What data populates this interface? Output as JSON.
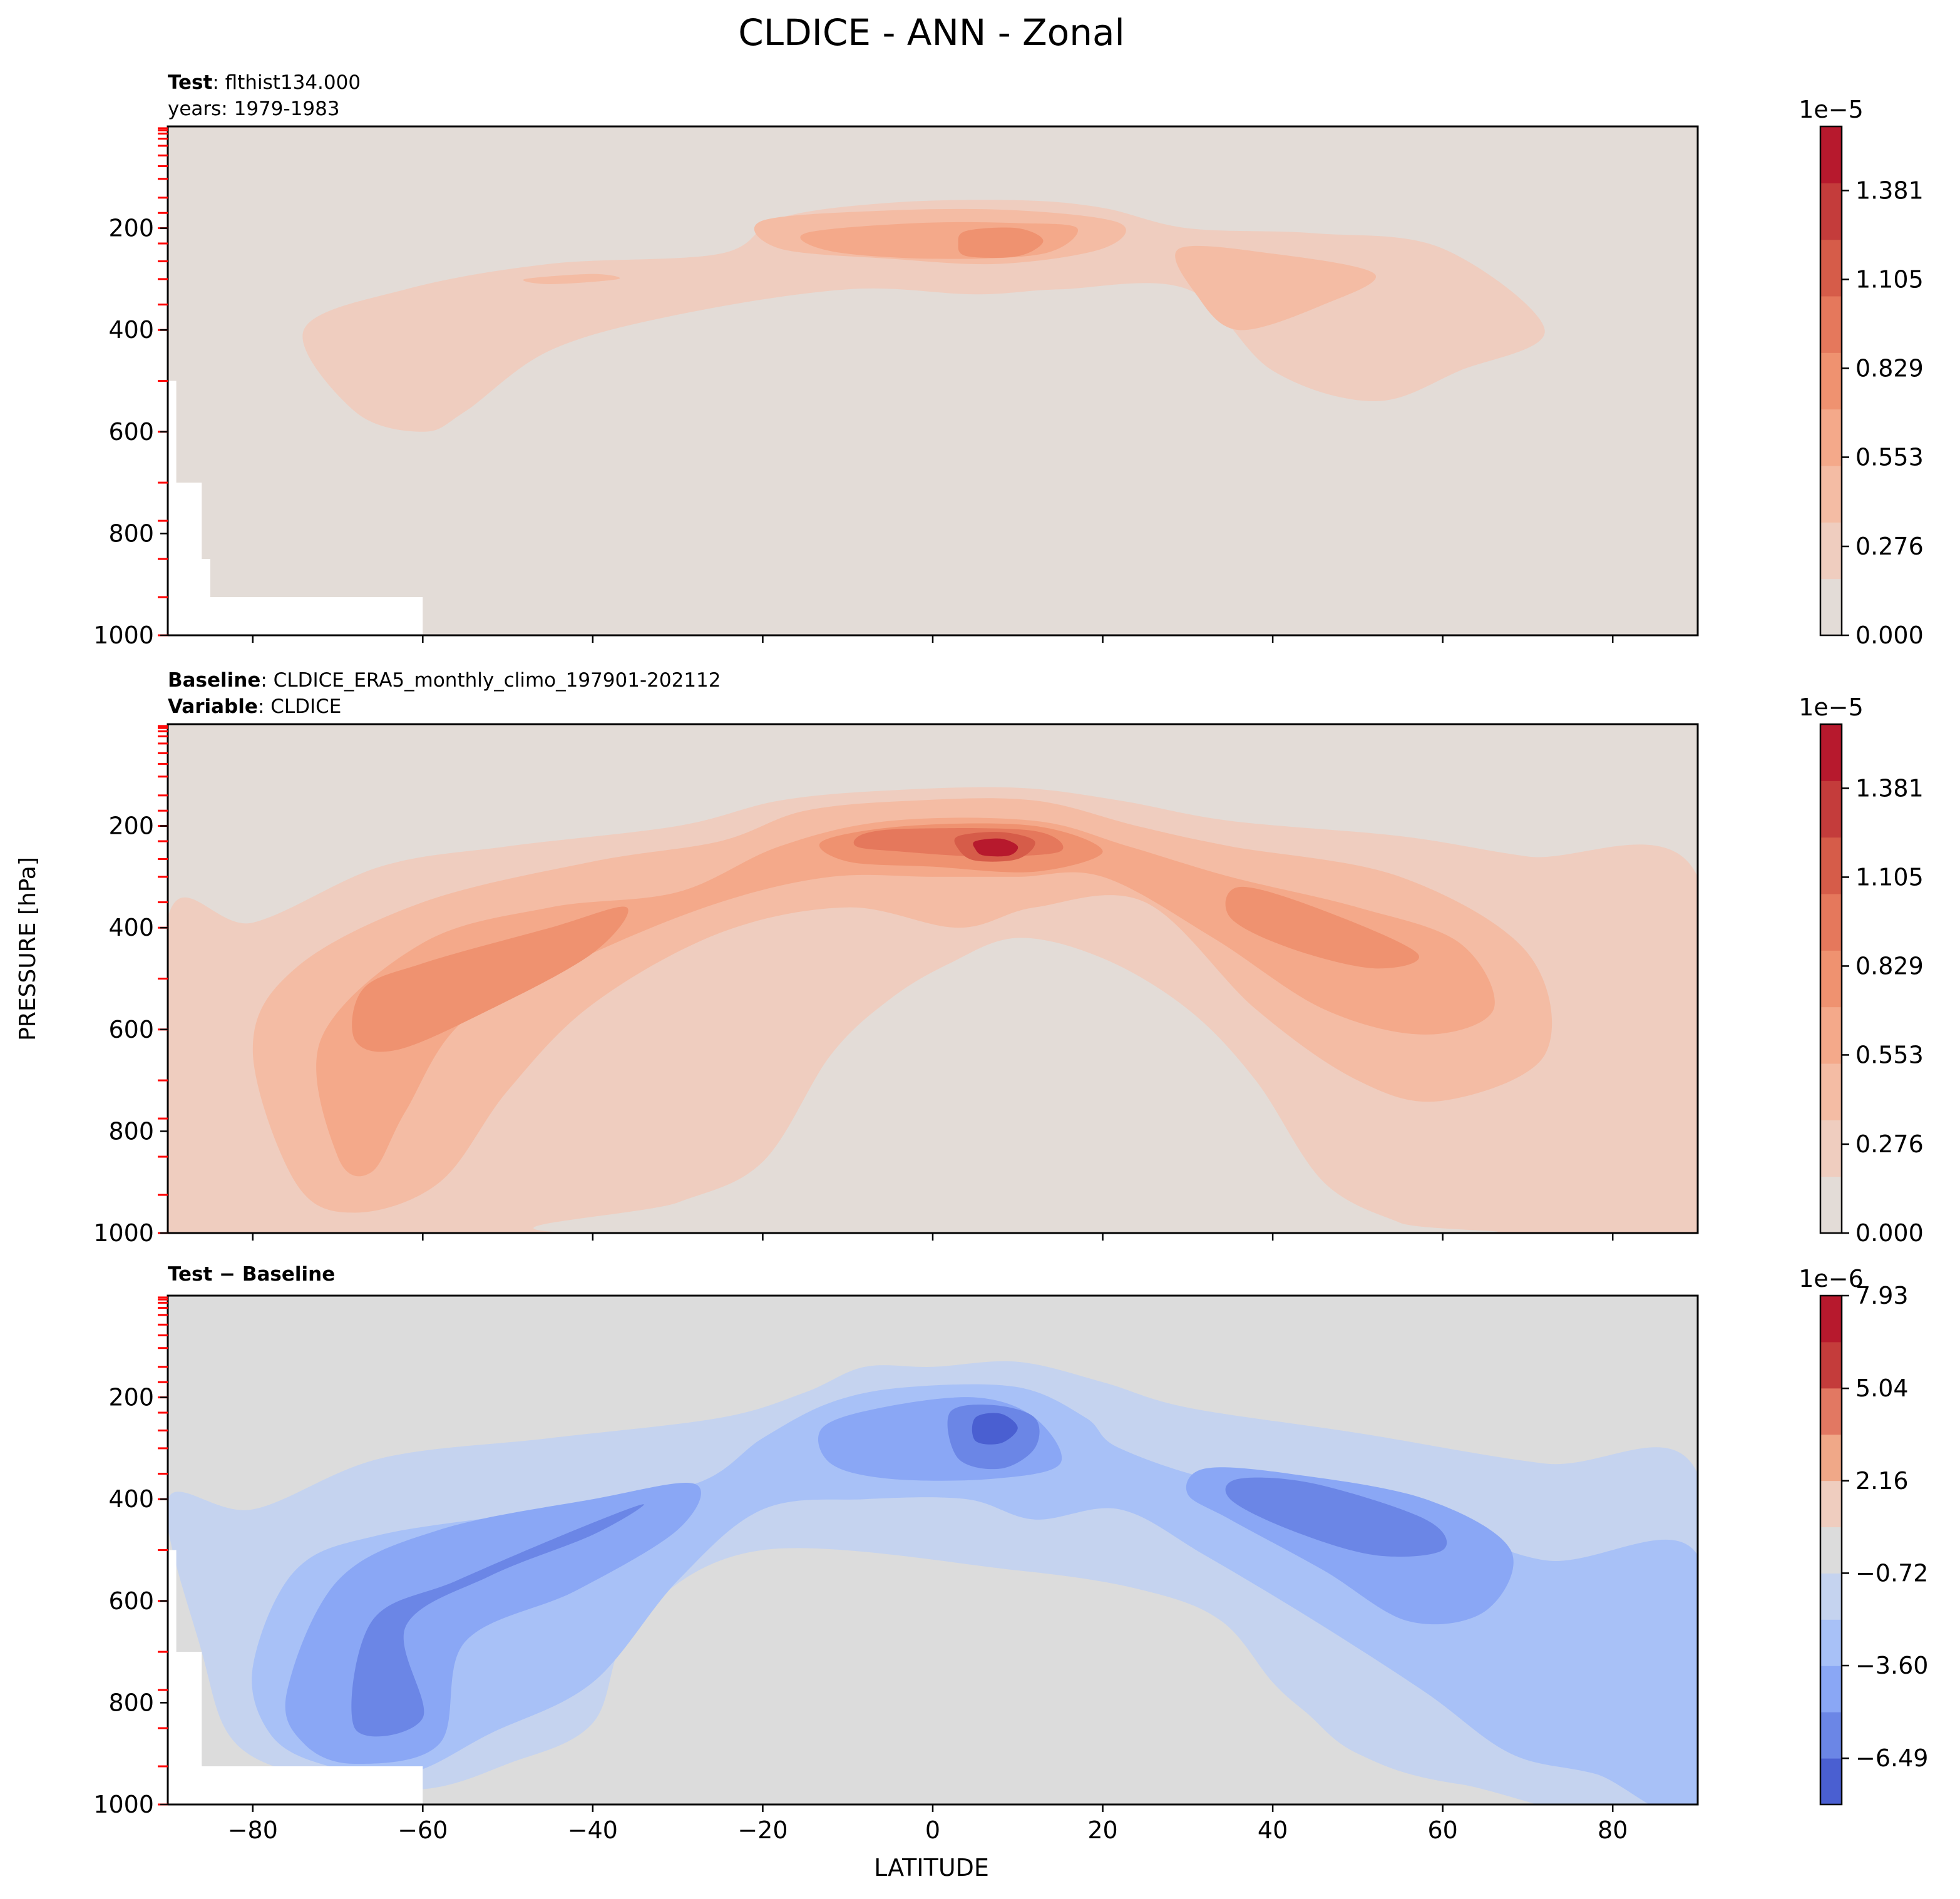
{
  "figure": {
    "title": "CLDICE - ANN - Zonal",
    "ylabel": "PRESSURE [hPa]",
    "xlabel": "LATITUDE"
  },
  "panels": [
    {
      "id": "test",
      "line1_bold": "Test",
      "line1_rest": ": flthist134.000",
      "line2_bold": "",
      "line2_rest": "years: 1979-1983",
      "colorbar_exponent": "1e−5",
      "colorbar_ticks": [
        "0.000",
        "0.276",
        "0.553",
        "0.829",
        "1.105",
        "1.381"
      ],
      "colorbar_tick_values": [
        0,
        0.276,
        0.553,
        0.829,
        1.105,
        1.381
      ],
      "colorbar_range": [
        0,
        1.58
      ],
      "colorbar_colors": [
        "#e3dcd7",
        "#efcdbf",
        "#f4bca4",
        "#f4a98a",
        "#ef9270",
        "#e5785c",
        "#d65c49",
        "#c43c3b",
        "#b7192d"
      ],
      "field_colors": {
        "background": "#e3dcd7",
        "level1": "#efcdbf",
        "level2": "#f4bca4",
        "level3": "#f4a98a",
        "level4": "#ef9270"
      }
    },
    {
      "id": "baseline",
      "line1_bold": "Baseline",
      "line1_rest": ": CLDICE_ERA5_monthly_climo_197901-202112",
      "line2_bold": "Variable",
      "line2_rest": ": CLDICE",
      "colorbar_exponent": "1e−5",
      "colorbar_ticks": [
        "0.000",
        "0.276",
        "0.553",
        "0.829",
        "1.105",
        "1.381"
      ],
      "colorbar_tick_values": [
        0,
        0.276,
        0.553,
        0.829,
        1.105,
        1.381
      ],
      "colorbar_range": [
        0,
        1.58
      ],
      "colorbar_colors": [
        "#e3dcd7",
        "#efcdbf",
        "#f4bca4",
        "#f4a98a",
        "#ef9270",
        "#e5785c",
        "#d65c49",
        "#c43c3b",
        "#b7192d"
      ],
      "field_colors": {
        "background": "#e3dcd7",
        "level1": "#efcdbf",
        "level2": "#f4bca4",
        "level3": "#f4a98a",
        "level4": "#ef9270",
        "level5": "#e5785c",
        "level6": "#d65c49",
        "level7": "#b7192d"
      }
    },
    {
      "id": "diff",
      "line1_bold": "Test − Baseline",
      "line1_rest": "",
      "line2_bold": "",
      "line2_rest": "",
      "colorbar_exponent": "1e−6",
      "colorbar_ticks": [
        "−6.49",
        "−3.60",
        "−0.72",
        "2.16",
        "5.04",
        "7.93"
      ],
      "colorbar_tick_values": [
        -6.49,
        -3.6,
        -0.72,
        2.16,
        5.04,
        7.93
      ],
      "colorbar_range": [
        -7.93,
        7.93
      ],
      "colorbar_colors": [
        "#4a5fd1",
        "#6b86e6",
        "#8aa7f5",
        "#a8c1f7",
        "#c5d3ef",
        "#dcdcdc",
        "#efcdbf",
        "#f0a888",
        "#e27862",
        "#c43c3b",
        "#b7192d"
      ],
      "field_colors": {
        "background": "#dcdcdc",
        "level1": "#c5d3ef",
        "level2": "#a8c1f7",
        "level3": "#8aa7f5",
        "level4": "#6b86e6",
        "level5": "#4a5fd1"
      }
    }
  ],
  "chart_data": {
    "type": "contour",
    "x": {
      "label": "LATITUDE",
      "range": [
        -90,
        90
      ],
      "ticks": [
        -80,
        -60,
        -40,
        -20,
        0,
        20,
        40,
        60,
        80
      ]
    },
    "y": {
      "label": "PRESSURE [hPa]",
      "range": [
        1000,
        0
      ],
      "ticks": [
        200,
        400,
        600,
        800,
        1000
      ]
    },
    "model_levels_hPa": [
      3.6,
      7.6,
      14,
      24,
      38,
      57,
      78,
      103,
      140,
      170,
      200,
      230,
      265,
      300,
      350,
      400,
      500,
      600,
      700,
      775,
      850,
      925,
      1000
    ],
    "series": [
      {
        "name": "Test",
        "peak_value": 1e-05,
        "peak_lat": 7,
        "peak_p": 220
      },
      {
        "name": "Baseline",
        "peak_value": 1.5e-05,
        "peak_lat": 7,
        "peak_p": 250
      },
      {
        "name": "Test − Baseline",
        "min_value": -7e-06,
        "min_lat": 7,
        "min_p": 270
      }
    ]
  }
}
